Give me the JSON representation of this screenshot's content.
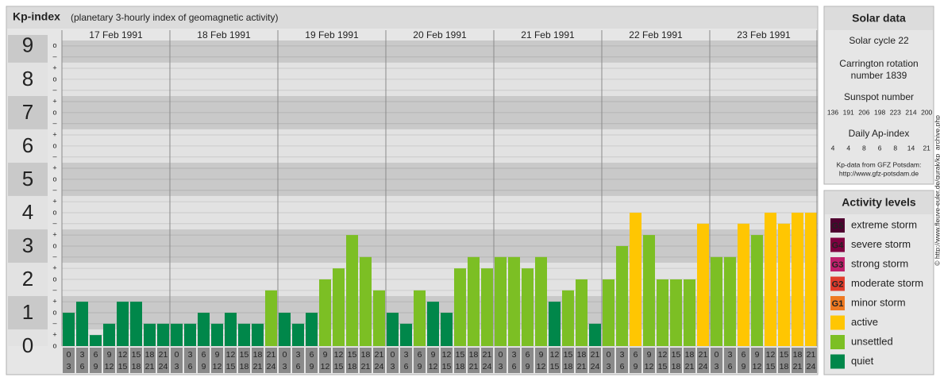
{
  "chart_data": {
    "type": "bar",
    "title": "Kp-index",
    "subtitle": "(planetary 3-hourly index of geomagnetic activity)",
    "ylim": [
      0,
      9.33
    ],
    "yticks": [
      0,
      1,
      2,
      3,
      4,
      5,
      6,
      7,
      8,
      9
    ],
    "minor_yticks": [
      {
        "value": 0,
        "label": "o"
      },
      {
        "value": 0.33,
        "label": "+"
      },
      {
        "value": 0.67,
        "label": "–"
      },
      {
        "value": 1,
        "label": "o"
      },
      {
        "value": 1.33,
        "label": "+"
      },
      {
        "value": 1.67,
        "label": "–"
      },
      {
        "value": 2,
        "label": "o"
      },
      {
        "value": 2.33,
        "label": "+"
      },
      {
        "value": 2.67,
        "label": "–"
      },
      {
        "value": 3,
        "label": "o"
      },
      {
        "value": 3.33,
        "label": "+"
      },
      {
        "value": 3.67,
        "label": "–"
      },
      {
        "value": 4,
        "label": "o"
      },
      {
        "value": 4.33,
        "label": "+"
      },
      {
        "value": 4.67,
        "label": "–"
      },
      {
        "value": 5,
        "label": "o"
      },
      {
        "value": 5.33,
        "label": "+"
      },
      {
        "value": 5.67,
        "label": "–"
      },
      {
        "value": 6,
        "label": "o"
      },
      {
        "value": 6.33,
        "label": "+"
      },
      {
        "value": 6.67,
        "label": "–"
      },
      {
        "value": 7,
        "label": "o"
      },
      {
        "value": 7.33,
        "label": "+"
      },
      {
        "value": 7.67,
        "label": "–"
      },
      {
        "value": 8,
        "label": "o"
      },
      {
        "value": 8.33,
        "label": "+"
      },
      {
        "value": 8.67,
        "label": "–"
      },
      {
        "value": 9,
        "label": "o"
      }
    ],
    "grid": true,
    "intervals": [
      [
        "0",
        "3"
      ],
      [
        "3",
        "6"
      ],
      [
        "6",
        "9"
      ],
      [
        "9",
        "12"
      ],
      [
        "12",
        "15"
      ],
      [
        "15",
        "18"
      ],
      [
        "18",
        "21"
      ],
      [
        "21",
        "24"
      ]
    ],
    "days": [
      {
        "date": "17 Feb 1991",
        "values": [
          1,
          1.33,
          0.33,
          0.67,
          1.33,
          1.33,
          0.67,
          0.67
        ],
        "colors": [
          "#00874a",
          "#00874a",
          "#00874a",
          "#00874a",
          "#00874a",
          "#00874a",
          "#00874a",
          "#00874a"
        ]
      },
      {
        "date": "18 Feb 1991",
        "values": [
          0.67,
          0.67,
          1,
          0.67,
          1,
          0.67,
          0.67,
          1.67
        ],
        "colors": [
          "#00874a",
          "#00874a",
          "#00874a",
          "#00874a",
          "#00874a",
          "#00874a",
          "#00874a",
          "#7cbf24"
        ]
      },
      {
        "date": "19 Feb 1991",
        "values": [
          1,
          0.67,
          1,
          2,
          2.33,
          3.33,
          2.67,
          1.67
        ],
        "colors": [
          "#00874a",
          "#00874a",
          "#00874a",
          "#7cbf24",
          "#7cbf24",
          "#7cbf24",
          "#7cbf24",
          "#7cbf24"
        ]
      },
      {
        "date": "20 Feb 1991",
        "values": [
          1,
          0.67,
          1.67,
          1.33,
          1,
          2.33,
          2.67,
          2.33
        ],
        "colors": [
          "#00874a",
          "#00874a",
          "#7cbf24",
          "#00874a",
          "#00874a",
          "#7cbf24",
          "#7cbf24",
          "#7cbf24"
        ]
      },
      {
        "date": "21 Feb 1991",
        "values": [
          2.67,
          2.67,
          2.33,
          2.67,
          1.33,
          1.67,
          2,
          0.67
        ],
        "colors": [
          "#7cbf24",
          "#7cbf24",
          "#7cbf24",
          "#7cbf24",
          "#00874a",
          "#7cbf24",
          "#7cbf24",
          "#00874a"
        ]
      },
      {
        "date": "22 Feb 1991",
        "values": [
          2,
          3,
          4,
          3.33,
          2,
          2,
          2,
          3.67
        ],
        "colors": [
          "#7cbf24",
          "#7cbf24",
          "#ffc602",
          "#7cbf24",
          "#7cbf24",
          "#7cbf24",
          "#7cbf24",
          "#ffc602"
        ]
      },
      {
        "date": "23 Feb 1991",
        "values": [
          2.67,
          2.67,
          3.67,
          3.33,
          4,
          3.67,
          4,
          4
        ],
        "colors": [
          "#7cbf24",
          "#7cbf24",
          "#ffc602",
          "#7cbf24",
          "#ffc602",
          "#ffc602",
          "#ffc602",
          "#ffc602"
        ]
      }
    ]
  },
  "solar_data": {
    "title": "Solar data",
    "cycle": "Solar cycle 22",
    "carrington": [
      "Carrington rotation",
      "number 1839"
    ],
    "sunspot_title": "Sunspot number",
    "sunspot_numbers": [
      136,
      191,
      206,
      198,
      223,
      214,
      200
    ],
    "ap_title": "Daily Ap-index",
    "ap_index": [
      4,
      4,
      8,
      6,
      8,
      14,
      21
    ],
    "source": [
      "Kp-data from GFZ Potsdam:",
      "http://www.gfz-potsdam.de"
    ]
  },
  "activity_levels": {
    "title": "Activity levels",
    "items": [
      {
        "code": "G5",
        "label": "extreme storm",
        "color": "#4f0030"
      },
      {
        "code": "G4",
        "label": "severe storm",
        "color": "#800040"
      },
      {
        "code": "G3",
        "label": "strong storm",
        "color": "#c0206c"
      },
      {
        "code": "G2",
        "label": "moderate storm",
        "color": "#e03c2c"
      },
      {
        "code": "G1",
        "label": "minor storm",
        "color": "#ee7a22"
      },
      {
        "label": "active",
        "color": "#ffc602"
      },
      {
        "label": "unsettled",
        "color": "#7cbf24"
      },
      {
        "label": "quiet",
        "color": "#00874a"
      }
    ]
  },
  "credit": "© http://www.fleuve-euler.de/gurak/kp_archive.php"
}
